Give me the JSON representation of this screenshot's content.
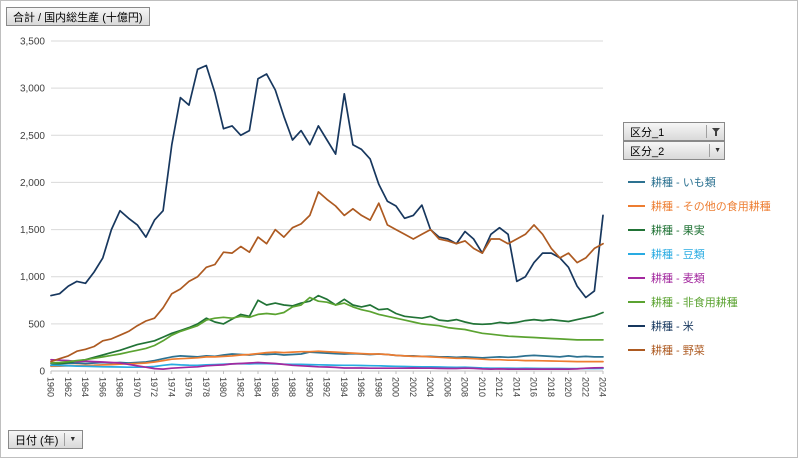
{
  "buttons": {
    "values_label": "合計 / 国内総生産 (十億円)",
    "kubun1_label": "区分_1",
    "kubun2_label": "区分_2",
    "date_label": "日付 (年)"
  },
  "icons": {
    "dropdown_glyph": "▼",
    "filter_icon": "funnel-filter",
    "dropdown_icon": "chevron-down"
  },
  "chart_data": {
    "type": "line",
    "title": "合計 / 国内総生産 (十億円)",
    "xlabel": "日付 (年)",
    "ylabel": "国内総生産 (十億円)",
    "grid": true,
    "legend_position": "right",
    "ylim": [
      0,
      3500
    ],
    "y_tick_step": 500,
    "x_tick_step": 2,
    "x": [
      1960,
      1961,
      1962,
      1963,
      1964,
      1965,
      1966,
      1967,
      1968,
      1969,
      1970,
      1971,
      1972,
      1973,
      1974,
      1975,
      1976,
      1977,
      1978,
      1979,
      1980,
      1981,
      1982,
      1983,
      1984,
      1985,
      1986,
      1987,
      1988,
      1989,
      1990,
      1991,
      1992,
      1993,
      1994,
      1995,
      1996,
      1997,
      1998,
      1999,
      2000,
      2001,
      2002,
      2003,
      2004,
      2005,
      2006,
      2007,
      2008,
      2009,
      2010,
      2011,
      2012,
      2013,
      2014,
      2015,
      2016,
      2017,
      2018,
      2019,
      2020,
      2021,
      2022,
      2023,
      2024
    ],
    "series": [
      {
        "name": "耕種 - いも類",
        "color": "#2d7291",
        "values": [
          80,
          75,
          80,
          85,
          80,
          85,
          90,
          85,
          90,
          85,
          90,
          95,
          110,
          130,
          150,
          160,
          155,
          150,
          160,
          155,
          170,
          180,
          175,
          170,
          180,
          175,
          180,
          170,
          175,
          180,
          200,
          195,
          190,
          185,
          180,
          185,
          180,
          175,
          180,
          175,
          165,
          160,
          160,
          155,
          155,
          150,
          150,
          145,
          150,
          145,
          140,
          145,
          150,
          145,
          150,
          160,
          165,
          160,
          155,
          150,
          160,
          150,
          155,
          150,
          150
        ]
      },
      {
        "name": "耕種 - その他の食用耕種",
        "color": "#ed7d31",
        "values": [
          50,
          52,
          55,
          58,
          60,
          62,
          65,
          68,
          72,
          76,
          80,
          85,
          95,
          110,
          125,
          130,
          135,
          140,
          150,
          150,
          155,
          160,
          170,
          175,
          185,
          195,
          200,
          195,
          200,
          205,
          205,
          210,
          205,
          200,
          195,
          190,
          185,
          180,
          180,
          175,
          165,
          160,
          155,
          155,
          150,
          145,
          140,
          135,
          135,
          130,
          125,
          120,
          120,
          115,
          115,
          110,
          110,
          108,
          106,
          104,
          102,
          100,
          100,
          100,
          100
        ]
      },
      {
        "name": "耕種 - 果実",
        "color": "#217336",
        "values": [
          60,
          75,
          90,
          105,
          120,
          145,
          170,
          195,
          220,
          250,
          280,
          300,
          320,
          360,
          400,
          430,
          460,
          500,
          560,
          520,
          500,
          550,
          600,
          580,
          750,
          700,
          720,
          700,
          690,
          720,
          740,
          800,
          760,
          700,
          760,
          700,
          680,
          700,
          650,
          660,
          610,
          580,
          570,
          560,
          580,
          540,
          530,
          545,
          520,
          500,
          495,
          500,
          515,
          505,
          515,
          535,
          545,
          535,
          545,
          535,
          525,
          545,
          565,
          585,
          620
        ]
      },
      {
        "name": "耕種 - 豆類",
        "color": "#29abe2",
        "values": [
          60,
          58,
          55,
          52,
          50,
          48,
          45,
          44,
          42,
          40,
          40,
          42,
          48,
          60,
          70,
          65,
          62,
          60,
          65,
          68,
          72,
          75,
          78,
          75,
          80,
          78,
          75,
          72,
          70,
          70,
          68,
          66,
          64,
          62,
          60,
          60,
          58,
          56,
          55,
          52,
          50,
          48,
          46,
          45,
          44,
          42,
          40,
          38,
          40,
          36,
          32,
          30,
          30,
          30,
          28,
          30,
          28,
          27,
          26,
          26,
          25,
          25,
          27,
          26,
          28
        ]
      },
      {
        "name": "耕種 - 麦類",
        "color": "#a3299f",
        "values": [
          120,
          115,
          110,
          100,
          105,
          100,
          95,
          90,
          85,
          70,
          55,
          40,
          25,
          20,
          30,
          35,
          40,
          45,
          55,
          60,
          65,
          75,
          80,
          85,
          90,
          85,
          80,
          70,
          60,
          55,
          50,
          45,
          42,
          38,
          32,
          32,
          32,
          30,
          30,
          30,
          30,
          30,
          32,
          30,
          30,
          28,
          26,
          26,
          30,
          28,
          22,
          20,
          22,
          20,
          20,
          20,
          20,
          20,
          20,
          20,
          20,
          22,
          30,
          33,
          35
        ]
      },
      {
        "name": "耕種 - 非食用耕種",
        "color": "#5ba331",
        "values": [
          85,
          90,
          100,
          110,
          120,
          135,
          150,
          165,
          180,
          200,
          220,
          240,
          270,
          320,
          380,
          420,
          450,
          480,
          540,
          560,
          570,
          560,
          580,
          570,
          600,
          610,
          600,
          620,
          680,
          700,
          780,
          740,
          730,
          700,
          720,
          680,
          650,
          630,
          600,
          580,
          560,
          540,
          520,
          500,
          490,
          480,
          460,
          450,
          440,
          420,
          400,
          390,
          380,
          370,
          365,
          360,
          355,
          350,
          345,
          340,
          335,
          330,
          330,
          330,
          330
        ]
      },
      {
        "name": "耕種 - 米",
        "color": "#17375e",
        "values": [
          800,
          820,
          900,
          950,
          930,
          1050,
          1200,
          1500,
          1700,
          1620,
          1550,
          1420,
          1600,
          1700,
          2400,
          2900,
          2820,
          3200,
          3240,
          2950,
          2570,
          2600,
          2500,
          2550,
          3100,
          3150,
          2980,
          2700,
          2450,
          2550,
          2400,
          2600,
          2450,
          2300,
          2940,
          2400,
          2350,
          2250,
          1980,
          1800,
          1750,
          1620,
          1650,
          1760,
          1500,
          1420,
          1400,
          1350,
          1480,
          1400,
          1250,
          1450,
          1520,
          1450,
          950,
          1000,
          1150,
          1250,
          1250,
          1200,
          1100,
          900,
          780,
          850,
          1650
        ]
      },
      {
        "name": "耕種 - 野菜",
        "color": "#ad5a21",
        "values": [
          100,
          130,
          160,
          210,
          230,
          260,
          320,
          340,
          380,
          420,
          480,
          530,
          560,
          670,
          820,
          870,
          950,
          1000,
          1100,
          1130,
          1260,
          1250,
          1320,
          1260,
          1420,
          1350,
          1500,
          1420,
          1520,
          1560,
          1650,
          1900,
          1820,
          1750,
          1650,
          1720,
          1650,
          1600,
          1780,
          1550,
          1500,
          1450,
          1400,
          1450,
          1500,
          1400,
          1380,
          1350,
          1380,
          1300,
          1250,
          1400,
          1400,
          1350,
          1400,
          1450,
          1550,
          1450,
          1300,
          1200,
          1250,
          1150,
          1200,
          1300,
          1350
        ]
      }
    ]
  }
}
